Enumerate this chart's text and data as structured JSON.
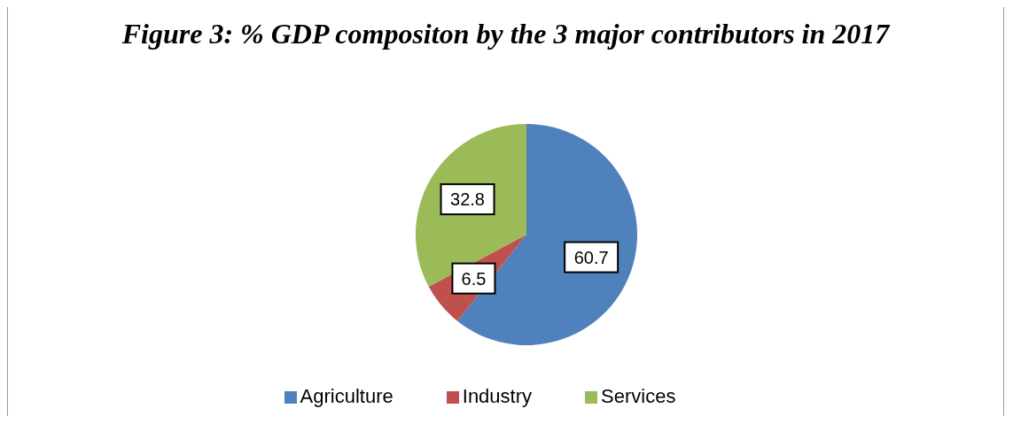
{
  "chart_data": {
    "type": "pie",
    "title": "Figure 3: % GDP compositon by the 3 major contributors in 2017",
    "categories": [
      "Agriculture",
      "Industry",
      "Services"
    ],
    "values": [
      60.7,
      6.5,
      32.8
    ],
    "colors": [
      "#4f81bd",
      "#c0504d",
      "#9bbb59"
    ],
    "data_labels": true,
    "legend": "bottom"
  }
}
